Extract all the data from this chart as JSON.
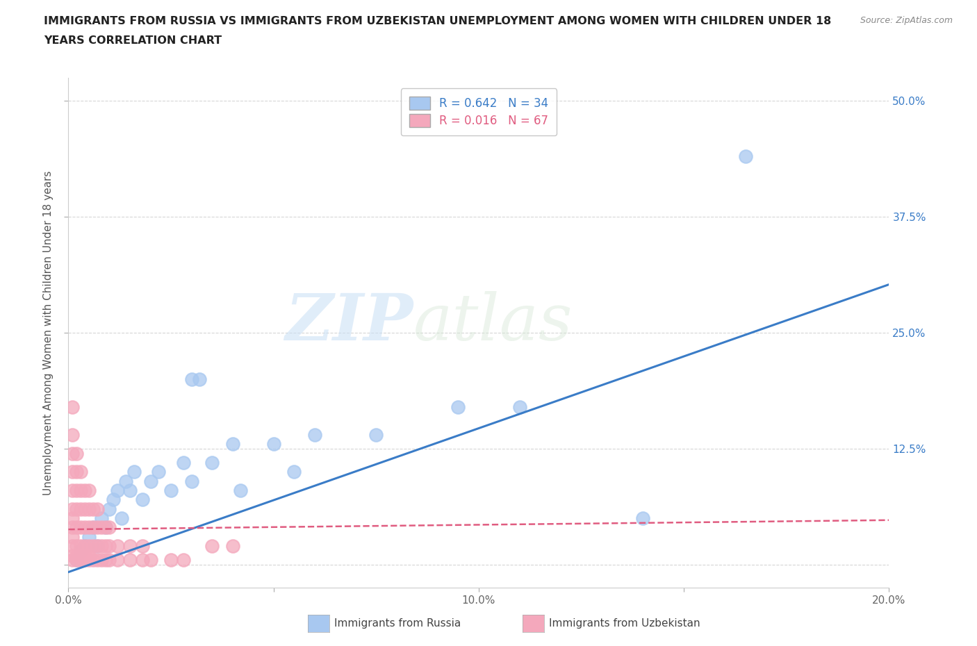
{
  "title_line1": "IMMIGRANTS FROM RUSSIA VS IMMIGRANTS FROM UZBEKISTAN UNEMPLOYMENT AMONG WOMEN WITH CHILDREN UNDER 18",
  "title_line2": "YEARS CORRELATION CHART",
  "source": "Source: ZipAtlas.com",
  "ylabel": "Unemployment Among Women with Children Under 18 years",
  "xlim": [
    0.0,
    0.2
  ],
  "ylim": [
    -0.025,
    0.525
  ],
  "yticks": [
    0.0,
    0.125,
    0.25,
    0.375,
    0.5
  ],
  "ytick_labels": [
    "",
    "12.5%",
    "25.0%",
    "37.5%",
    "50.0%"
  ],
  "xticks": [
    0.0,
    0.05,
    0.1,
    0.15,
    0.2
  ],
  "xtick_labels": [
    "0.0%",
    "",
    "10.0%",
    "",
    "20.0%"
  ],
  "grid_color": "#cccccc",
  "background_color": "#ffffff",
  "russia_color": "#a8c8f0",
  "uzbekistan_color": "#f4a8bc",
  "russia_R": 0.642,
  "russia_N": 34,
  "uzbekistan_R": 0.016,
  "uzbekistan_N": 67,
  "russia_line_color": "#3a7cc7",
  "uzbekistan_line_color": "#e05c80",
  "russia_scatter": [
    [
      0.002,
      0.005
    ],
    [
      0.003,
      0.015
    ],
    [
      0.004,
      0.02
    ],
    [
      0.005,
      0.03
    ],
    [
      0.006,
      0.04
    ],
    [
      0.007,
      0.02
    ],
    [
      0.008,
      0.05
    ],
    [
      0.009,
      0.04
    ],
    [
      0.01,
      0.06
    ],
    [
      0.011,
      0.07
    ],
    [
      0.012,
      0.08
    ],
    [
      0.013,
      0.05
    ],
    [
      0.014,
      0.09
    ],
    [
      0.015,
      0.08
    ],
    [
      0.016,
      0.1
    ],
    [
      0.018,
      0.07
    ],
    [
      0.02,
      0.09
    ],
    [
      0.022,
      0.1
    ],
    [
      0.025,
      0.08
    ],
    [
      0.028,
      0.11
    ],
    [
      0.03,
      0.09
    ],
    [
      0.03,
      0.2
    ],
    [
      0.032,
      0.2
    ],
    [
      0.035,
      0.11
    ],
    [
      0.04,
      0.13
    ],
    [
      0.042,
      0.08
    ],
    [
      0.05,
      0.13
    ],
    [
      0.055,
      0.1
    ],
    [
      0.06,
      0.14
    ],
    [
      0.075,
      0.14
    ],
    [
      0.095,
      0.17
    ],
    [
      0.11,
      0.17
    ],
    [
      0.14,
      0.05
    ],
    [
      0.165,
      0.44
    ]
  ],
  "uzbekistan_scatter": [
    [
      0.001,
      0.005
    ],
    [
      0.001,
      0.01
    ],
    [
      0.001,
      0.02
    ],
    [
      0.001,
      0.03
    ],
    [
      0.001,
      0.04
    ],
    [
      0.001,
      0.05
    ],
    [
      0.001,
      0.06
    ],
    [
      0.001,
      0.08
    ],
    [
      0.001,
      0.1
    ],
    [
      0.001,
      0.12
    ],
    [
      0.001,
      0.14
    ],
    [
      0.001,
      0.17
    ],
    [
      0.002,
      0.005
    ],
    [
      0.002,
      0.01
    ],
    [
      0.002,
      0.02
    ],
    [
      0.002,
      0.04
    ],
    [
      0.002,
      0.06
    ],
    [
      0.002,
      0.08
    ],
    [
      0.002,
      0.1
    ],
    [
      0.002,
      0.12
    ],
    [
      0.003,
      0.005
    ],
    [
      0.003,
      0.01
    ],
    [
      0.003,
      0.02
    ],
    [
      0.003,
      0.04
    ],
    [
      0.003,
      0.06
    ],
    [
      0.003,
      0.08
    ],
    [
      0.003,
      0.1
    ],
    [
      0.004,
      0.005
    ],
    [
      0.004,
      0.01
    ],
    [
      0.004,
      0.02
    ],
    [
      0.004,
      0.04
    ],
    [
      0.004,
      0.06
    ],
    [
      0.004,
      0.08
    ],
    [
      0.005,
      0.005
    ],
    [
      0.005,
      0.01
    ],
    [
      0.005,
      0.02
    ],
    [
      0.005,
      0.04
    ],
    [
      0.005,
      0.06
    ],
    [
      0.005,
      0.08
    ],
    [
      0.006,
      0.005
    ],
    [
      0.006,
      0.02
    ],
    [
      0.006,
      0.04
    ],
    [
      0.006,
      0.06
    ],
    [
      0.007,
      0.005
    ],
    [
      0.007,
      0.02
    ],
    [
      0.007,
      0.04
    ],
    [
      0.007,
      0.06
    ],
    [
      0.008,
      0.005
    ],
    [
      0.008,
      0.02
    ],
    [
      0.008,
      0.04
    ],
    [
      0.009,
      0.005
    ],
    [
      0.009,
      0.02
    ],
    [
      0.009,
      0.04
    ],
    [
      0.01,
      0.005
    ],
    [
      0.01,
      0.02
    ],
    [
      0.01,
      0.04
    ],
    [
      0.012,
      0.005
    ],
    [
      0.012,
      0.02
    ],
    [
      0.015,
      0.005
    ],
    [
      0.015,
      0.02
    ],
    [
      0.018,
      0.005
    ],
    [
      0.018,
      0.02
    ],
    [
      0.02,
      0.005
    ],
    [
      0.025,
      0.005
    ],
    [
      0.028,
      0.005
    ],
    [
      0.035,
      0.02
    ],
    [
      0.04,
      0.02
    ]
  ],
  "watermark_zip": "ZIP",
  "watermark_atlas": "atlas"
}
